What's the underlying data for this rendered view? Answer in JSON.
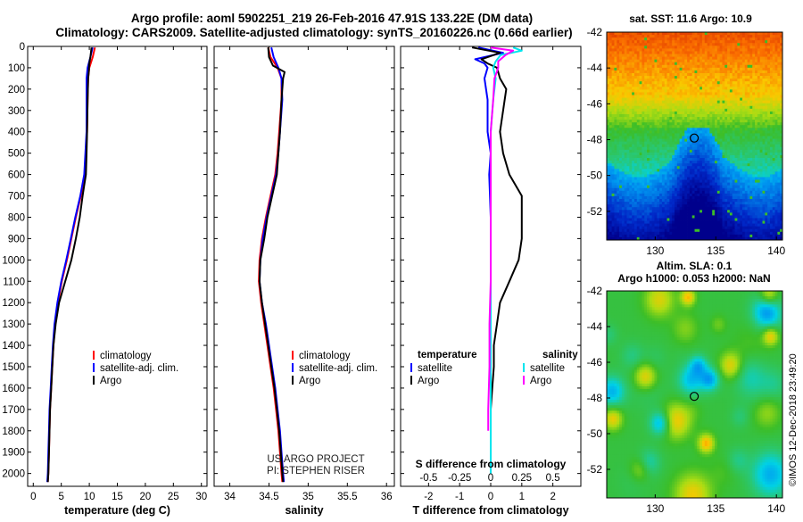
{
  "title_line1": "Argo profile: aoml 5902251_219 26-Feb-2016 47.91S 133.22E (DM data)",
  "title_line2": "Climatology: CARS2009. Satellite-adjusted climatology: synTS_20160226.nc (0.66d earlier)",
  "credit_line1": "US ARGO PROJECT",
  "credit_line2": "PI: STEPHEN RISER",
  "watermark": "©IMOS 12-Dec-2018 23:49:20",
  "colors": {
    "climatology": "#ff0000",
    "satellite": "#0000ff",
    "argo": "#000000",
    "sat_salinity": "#00e5ee",
    "argo_salinity": "#ff00ff"
  },
  "chart_data": [
    {
      "type": "line",
      "id": "temperature",
      "xlabel": "temperature (deg C)",
      "xlim": [
        -1,
        31
      ],
      "ylim": [
        2060,
        0
      ],
      "xticks": [
        "0",
        "5",
        "10",
        "15",
        "20",
        "25",
        "30"
      ],
      "yticks": [
        "0",
        "100",
        "200",
        "300",
        "400",
        "500",
        "600",
        "700",
        "800",
        "900",
        "1000",
        "1100",
        "1200",
        "1300",
        "1400",
        "1500",
        "1600",
        "1700",
        "1800",
        "1900",
        "2000"
      ],
      "legend": [
        "climatology",
        "satellite-adj. clim.",
        "Argo"
      ],
      "series": [
        {
          "name": "climatology",
          "depth": [
            5,
            50,
            100,
            150,
            250,
            400,
            500,
            600,
            700,
            800,
            900,
            1000,
            1100,
            1200,
            1300,
            1400,
            1500,
            1600,
            1700,
            1800,
            1900,
            2000,
            2040
          ],
          "values": [
            11.0,
            10.6,
            10.0,
            9.8,
            9.7,
            9.6,
            9.4,
            9.2,
            8.5,
            7.6,
            6.8,
            6.0,
            5.1,
            4.4,
            3.9,
            3.6,
            3.4,
            3.2,
            3.0,
            2.9,
            2.8,
            2.7,
            2.6
          ]
        },
        {
          "name": "satellite-adj. clim.",
          "depth": [
            5,
            50,
            100,
            150,
            250,
            400,
            500,
            600,
            700,
            800,
            900,
            1000,
            1100,
            1200,
            1300,
            1400,
            1500,
            1600,
            1700,
            1800,
            1900,
            2000,
            2040
          ],
          "values": [
            10.6,
            10.2,
            9.7,
            9.5,
            9.5,
            9.5,
            9.3,
            9.1,
            8.4,
            7.5,
            6.7,
            5.9,
            5.0,
            4.3,
            3.8,
            3.5,
            3.3,
            3.1,
            2.9,
            2.8,
            2.7,
            2.6,
            2.5
          ]
        },
        {
          "name": "Argo",
          "depth": [
            5,
            50,
            80,
            120,
            150,
            250,
            400,
            500,
            600,
            650,
            700,
            800,
            900,
            1000,
            1100,
            1200,
            1300,
            1400,
            1500,
            1600,
            1700,
            1800,
            1900,
            2000,
            2040
          ],
          "values": [
            10.4,
            10.2,
            10.0,
            9.9,
            9.8,
            9.7,
            9.6,
            9.5,
            9.4,
            9.1,
            8.8,
            8.3,
            7.6,
            6.8,
            5.7,
            4.6,
            4.0,
            3.6,
            3.4,
            3.2,
            3.0,
            2.9,
            2.8,
            2.7,
            2.6
          ]
        }
      ]
    },
    {
      "type": "line",
      "id": "salinity",
      "xlabel": "salinity",
      "xlim": [
        33.8,
        36.1
      ],
      "ylim": [
        2060,
        0
      ],
      "xticks": [
        "34",
        "34.5",
        "35",
        "35.5",
        "36"
      ],
      "legend": [
        "climatology",
        "satellite-adj. clim.",
        "Argo"
      ],
      "series": [
        {
          "name": "climatology",
          "depth": [
            5,
            50,
            100,
            150,
            250,
            400,
            500,
            600,
            700,
            800,
            900,
            1000,
            1100,
            1200,
            1300,
            1400,
            1500,
            1600,
            1700,
            1800,
            1900,
            2000,
            2040
          ],
          "values": [
            34.49,
            34.52,
            34.61,
            34.66,
            34.66,
            34.63,
            34.61,
            34.58,
            34.52,
            34.46,
            34.41,
            34.38,
            34.37,
            34.4,
            34.44,
            34.48,
            34.52,
            34.56,
            34.59,
            34.62,
            34.64,
            34.66,
            34.67
          ]
        },
        {
          "name": "satellite-adj. clim.",
          "depth": [
            5,
            50,
            100,
            150,
            250,
            400,
            500,
            600,
            700,
            800,
            900,
            1000,
            1100,
            1200,
            1300,
            1400,
            1500,
            1600,
            1700,
            1800,
            1900,
            2000,
            2040
          ],
          "values": [
            34.53,
            34.56,
            34.62,
            34.66,
            34.67,
            34.64,
            34.62,
            34.59,
            34.53,
            34.47,
            34.42,
            34.39,
            34.38,
            34.41,
            34.46,
            34.5,
            34.54,
            34.58,
            34.61,
            34.64,
            34.66,
            34.68,
            34.69
          ]
        },
        {
          "name": "Argo",
          "depth": [
            5,
            50,
            90,
            120,
            150,
            250,
            400,
            500,
            600,
            700,
            800,
            900,
            1000,
            1100,
            1200,
            1300,
            1400,
            1500,
            1600,
            1700,
            1800,
            1900,
            2000,
            2040
          ],
          "values": [
            34.49,
            34.5,
            34.55,
            34.7,
            34.68,
            34.66,
            34.64,
            34.62,
            34.6,
            34.54,
            34.48,
            34.44,
            34.39,
            34.38,
            34.41,
            34.45,
            34.49,
            34.53,
            34.57,
            34.6,
            34.63,
            34.65,
            34.67,
            34.68
          ]
        }
      ]
    },
    {
      "type": "line",
      "id": "difference",
      "xlabel": "T difference from climatology",
      "xlim": [
        -2.9,
        2.9
      ],
      "ylim": [
        2060,
        0
      ],
      "xticks": [
        "-2",
        "-1",
        "0",
        "1",
        "2"
      ],
      "s_label": "S difference from climatology",
      "s_ticks": [
        "-0.5",
        "-0.25",
        "0",
        "0.25",
        "0.5"
      ],
      "legend_temperature_title": "temperature",
      "legend_salinity_title": "salinity",
      "legend_temperature": [
        "satellite",
        "Argo"
      ],
      "legend_salinity": [
        "satellite",
        "Argo"
      ],
      "series": [
        {
          "name": "satellite (temperature)",
          "depth": [
            5,
            30,
            60,
            80,
            100,
            150,
            250,
            400,
            500,
            600,
            800,
            1000,
            1200,
            1400,
            1600,
            1800,
            1850
          ],
          "values": [
            -0.4,
            0.4,
            -0.5,
            -0.2,
            -0.1,
            -0.2,
            -0.1,
            -0.1,
            0.0,
            -0.05,
            0.0,
            0.0,
            0.0,
            0.0,
            0.0,
            0.0,
            0.0
          ]
        },
        {
          "name": "Argo (temperature)",
          "depth": [
            5,
            30,
            60,
            80,
            100,
            150,
            200,
            300,
            400,
            500,
            600,
            700,
            800,
            900,
            1000,
            1100,
            1200,
            1300,
            1400,
            1500,
            1600,
            1700,
            1800,
            1850
          ],
          "values": [
            -0.6,
            0.3,
            -0.3,
            -0.1,
            0.2,
            0.3,
            0.5,
            0.4,
            0.3,
            0.4,
            0.6,
            1.0,
            1.0,
            1.0,
            0.9,
            0.6,
            0.3,
            0.2,
            0.1,
            0.1,
            0.05,
            0.0,
            0.0,
            0.0
          ]
        },
        {
          "name": "satellite (salinity)",
          "depth": [
            5,
            20,
            40,
            70,
            100,
            150,
            250,
            400,
            500,
            700,
            900,
            1100,
            1400,
            1700,
            1900,
            2000
          ],
          "values": [
            0.18,
            0.25,
            0.08,
            0.04,
            0.02,
            0.04,
            0.02,
            0.0,
            0.0,
            0.0,
            0.0,
            0.0,
            0.0,
            0.0,
            0.0,
            0.0
          ]
        },
        {
          "name": "Argo (salinity)",
          "depth": [
            5,
            20,
            40,
            70,
            100,
            150,
            250,
            400,
            500,
            700,
            900,
            1100,
            1300,
            1500,
            1700,
            1800
          ],
          "values": [
            0.0,
            0.18,
            0.12,
            0.06,
            0.06,
            0.03,
            0.02,
            0.0,
            0.0,
            0.0,
            0.0,
            0.0,
            -0.01,
            -0.01,
            -0.02,
            -0.02
          ]
        }
      ]
    },
    {
      "type": "heatmap",
      "id": "sst_map",
      "title": "sat. SST: 11.6 Argo: 10.9",
      "xlim": [
        126,
        140.5
      ],
      "ylim": [
        -53.6,
        -42
      ],
      "xticks": [
        "130",
        "135",
        "140"
      ],
      "yticks": [
        "-42",
        "-44",
        "-46",
        "-48",
        "-50",
        "-52"
      ],
      "marker": {
        "lon": 133.22,
        "lat": -47.91
      }
    },
    {
      "type": "heatmap",
      "id": "sla_map",
      "title_line1": "Altim. SLA: 0.1",
      "title_line2": "Argo h1000: 0.053 h2000: NaN",
      "xlim": [
        126,
        140.5
      ],
      "ylim": [
        -53.6,
        -42
      ],
      "xticks": [
        "130",
        "135",
        "140"
      ],
      "yticks": [
        "-42",
        "-44",
        "-46",
        "-48",
        "-50",
        "-52"
      ],
      "marker": {
        "lon": 133.22,
        "lat": -47.91
      }
    }
  ]
}
